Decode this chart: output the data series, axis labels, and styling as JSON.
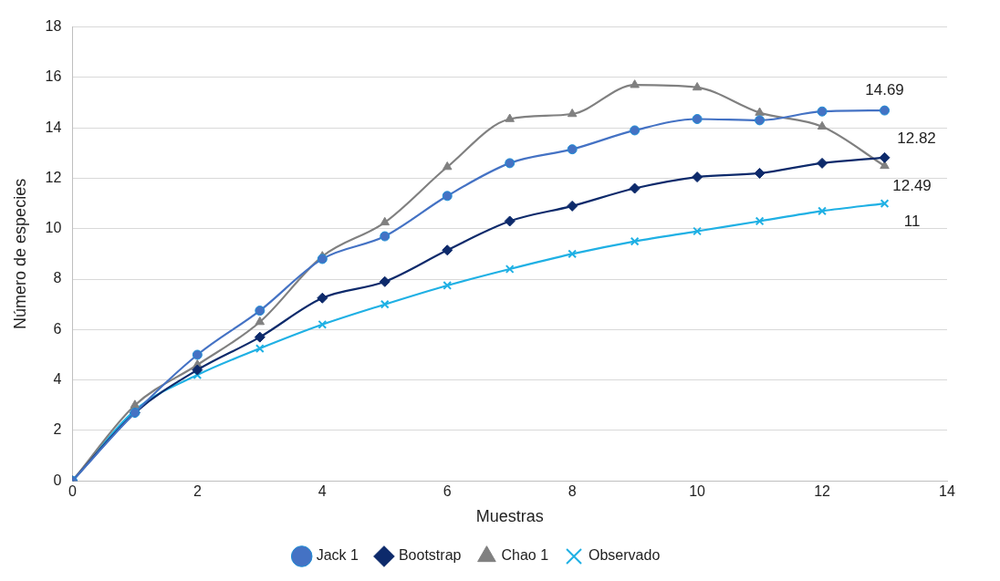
{
  "chart_data": {
    "type": "line",
    "xlabel": "Muestras",
    "ylabel": "Número de especies",
    "xlim": [
      0,
      14
    ],
    "xticks": [
      0,
      2,
      4,
      6,
      8,
      10,
      12,
      14
    ],
    "ylim": [
      0,
      18
    ],
    "yticks": [
      0,
      2,
      4,
      6,
      8,
      10,
      12,
      14,
      16,
      18
    ],
    "x": [
      0,
      1,
      2,
      3,
      4,
      5,
      6,
      7,
      8,
      9,
      10,
      11,
      12,
      13
    ],
    "series": [
      {
        "name": "Observado",
        "color": "#1fb0e4",
        "marker": "cross",
        "values": [
          0,
          2.8,
          4.2,
          5.25,
          6.2,
          7.0,
          7.75,
          8.4,
          9.0,
          9.5,
          9.9,
          10.3,
          10.7,
          11
        ],
        "value_labels": [
          null,
          null,
          null,
          null,
          null,
          null,
          null,
          null,
          null,
          null,
          null,
          null,
          null,
          "11"
        ]
      },
      {
        "name": "Chao 1",
        "color": "#808080",
        "marker": "triangle",
        "values": [
          0,
          3.0,
          4.6,
          6.3,
          8.9,
          10.25,
          12.45,
          14.35,
          14.55,
          15.7,
          15.6,
          14.6,
          14.05,
          12.49
        ],
        "value_labels": [
          null,
          null,
          null,
          null,
          null,
          null,
          null,
          null,
          null,
          null,
          null,
          null,
          null,
          "12.49"
        ]
      },
      {
        "name": "Bootstrap",
        "color": "#0d2a6b",
        "marker": "diamond",
        "values": [
          0,
          2.7,
          4.4,
          5.7,
          7.25,
          7.9,
          9.15,
          10.3,
          10.9,
          11.6,
          12.05,
          12.2,
          12.6,
          12.82
        ],
        "value_labels": [
          null,
          null,
          null,
          null,
          null,
          null,
          null,
          null,
          null,
          null,
          null,
          null,
          null,
          "12.82"
        ]
      },
      {
        "name": "Jack 1",
        "color": "#4472c4",
        "marker": "circle",
        "values": [
          0,
          2.7,
          5.0,
          6.75,
          8.8,
          9.7,
          11.3,
          12.6,
          13.15,
          13.9,
          14.35,
          14.3,
          14.65,
          14.69
        ],
        "value_labels": [
          null,
          null,
          null,
          null,
          null,
          null,
          null,
          null,
          null,
          null,
          null,
          null,
          null,
          "14.69"
        ]
      }
    ],
    "grid": "y",
    "legend": "bottom"
  }
}
